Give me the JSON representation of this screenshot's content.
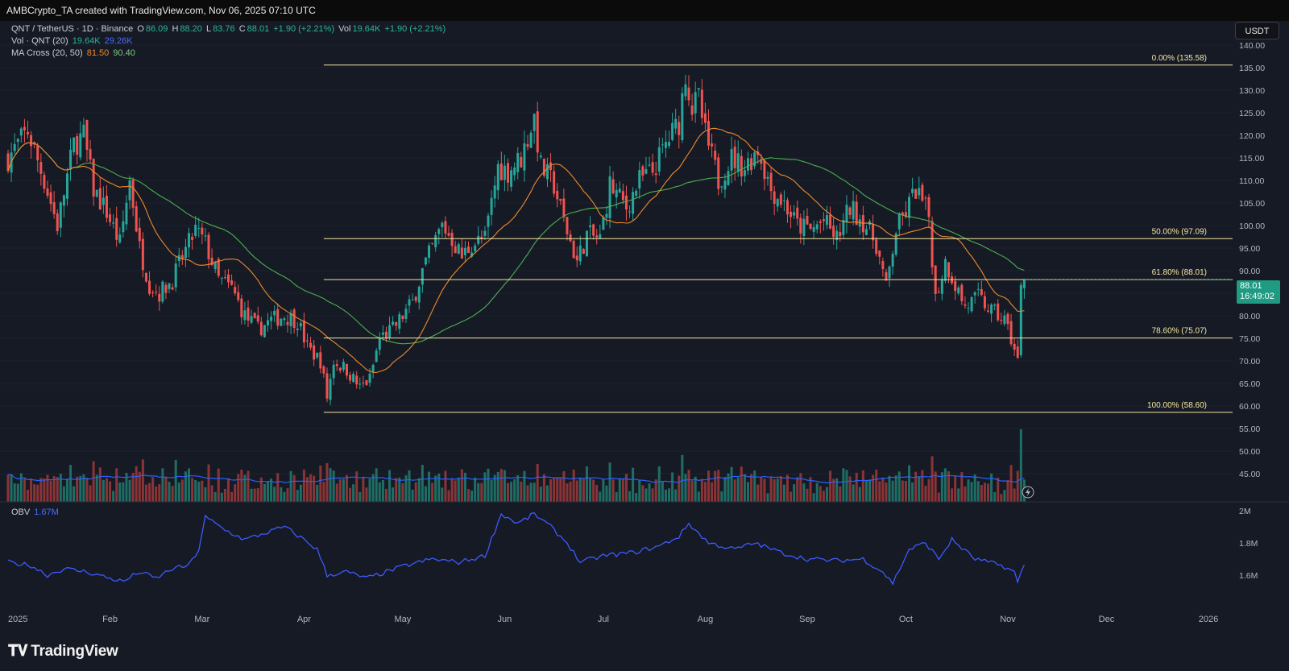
{
  "header": {
    "attribution": "AMBCrypto_TA created with TradingView.com, Nov 06, 2025 07:10 UTC"
  },
  "legend": {
    "symbol": "QNT / TetherUS · 1D · Binance",
    "ohlc": [
      "O",
      "86.09",
      "H",
      "88.20",
      "L",
      "83.76",
      "C",
      "88.01",
      "+1.90 (+2.21%)"
    ],
    "vol_label": "Vol",
    "vol_value": "19.64K",
    "vol_change": "+1.90 (+2.21%)",
    "vol_qnt_label": "Vol · QNT (20)",
    "vol_qnt_v1": "19.64K",
    "vol_qnt_v2": "29.26K",
    "ma_label": "MA Cross (20, 50)",
    "ma_v1": "81.50",
    "ma_v2": "90.40"
  },
  "currency_button": "USDT",
  "last_price": {
    "value": "88.01",
    "countdown": "16:49:02"
  },
  "obv": {
    "label": "OBV",
    "value": "1.67M"
  },
  "brand": "TradingView",
  "colors": {
    "background": "#161a25",
    "up": "#26a69a",
    "down": "#ef5350",
    "ma20": "#f0892b",
    "ma50": "#4caf50",
    "fib": "#f5e79e",
    "vol_ma": "#2962ff",
    "obv": "#3d5afe"
  },
  "chart_data": {
    "type": "candlestick",
    "title": "QNT / TetherUS · 1D · Binance",
    "price_axis": {
      "ylim": [
        43,
        142
      ],
      "ticks": [
        "140.00",
        "135.00",
        "130.00",
        "125.00",
        "120.00",
        "115.00",
        "110.00",
        "105.00",
        "100.00",
        "95.00",
        "90.00",
        "85.00",
        "80.00",
        "75.00",
        "70.00",
        "65.00",
        "60.00",
        "55.00",
        "50.00",
        "45.00"
      ]
    },
    "x_axis": {
      "ticks": [
        "2025",
        "Feb",
        "Mar",
        "Apr",
        "May",
        "Jun",
        "Jul",
        "Aug",
        "Sep",
        "Oct",
        "Nov",
        "Dec",
        "2026"
      ]
    },
    "fib_levels": [
      {
        "label": "0.00% (135.58)",
        "value": 135.58
      },
      {
        "label": "50.00% (97.09)",
        "value": 97.09
      },
      {
        "label": "61.80% (88.01)",
        "value": 88.01
      },
      {
        "label": "78.60% (75.07)",
        "value": 75.07
      },
      {
        "label": "100.00% (58.60)",
        "value": 58.6
      }
    ],
    "price_path": [
      [
        "2025-01-01",
        115
      ],
      [
        "2025-01-07",
        121
      ],
      [
        "2025-01-12",
        110
      ],
      [
        "2025-01-16",
        100
      ],
      [
        "2025-01-21",
        118
      ],
      [
        "2025-01-24",
        120
      ],
      [
        "2025-01-27",
        108
      ],
      [
        "2025-01-31",
        103
      ],
      [
        "2025-02-04",
        96
      ],
      [
        "2025-02-07",
        110
      ],
      [
        "2025-02-10",
        95
      ],
      [
        "2025-02-13",
        87
      ],
      [
        "2025-02-16",
        85
      ],
      [
        "2025-02-20",
        88
      ],
      [
        "2025-02-23",
        93
      ],
      [
        "2025-02-27",
        99
      ],
      [
        "2025-03-02",
        96
      ],
      [
        "2025-03-06",
        88
      ],
      [
        "2025-03-10",
        86
      ],
      [
        "2025-03-14",
        80
      ],
      [
        "2025-03-18",
        77
      ],
      [
        "2025-03-22",
        79
      ],
      [
        "2025-03-26",
        80
      ],
      [
        "2025-03-30",
        79
      ],
      [
        "2025-04-02",
        73
      ],
      [
        "2025-04-06",
        70
      ],
      [
        "2025-04-08",
        62
      ],
      [
        "2025-04-10",
        70
      ],
      [
        "2025-04-14",
        68
      ],
      [
        "2025-04-18",
        64
      ],
      [
        "2025-04-21",
        66
      ],
      [
        "2025-04-24",
        75
      ],
      [
        "2025-04-28",
        77
      ],
      [
        "2025-05-01",
        80
      ],
      [
        "2025-05-04",
        83
      ],
      [
        "2025-05-07",
        90
      ],
      [
        "2025-05-10",
        95
      ],
      [
        "2025-05-13",
        100
      ],
      [
        "2025-05-16",
        97
      ],
      [
        "2025-05-19",
        93
      ],
      [
        "2025-05-22",
        96
      ],
      [
        "2025-05-26",
        97
      ],
      [
        "2025-05-30",
        113
      ],
      [
        "2025-06-02",
        112
      ],
      [
        "2025-06-06",
        115
      ],
      [
        "2025-06-10",
        124
      ],
      [
        "2025-06-12",
        113
      ],
      [
        "2025-06-16",
        109
      ],
      [
        "2025-06-19",
        101
      ],
      [
        "2025-06-23",
        92
      ],
      [
        "2025-06-26",
        98
      ],
      [
        "2025-06-30",
        97
      ],
      [
        "2025-07-03",
        109
      ],
      [
        "2025-07-08",
        104
      ],
      [
        "2025-07-12",
        110
      ],
      [
        "2025-07-16",
        112
      ],
      [
        "2025-07-20",
        118
      ],
      [
        "2025-07-24",
        123
      ],
      [
        "2025-07-26",
        134
      ],
      [
        "2025-07-28",
        126
      ],
      [
        "2025-07-30",
        128
      ],
      [
        "2025-08-01",
        120
      ],
      [
        "2025-08-05",
        110
      ],
      [
        "2025-08-09",
        115
      ],
      [
        "2025-08-13",
        113
      ],
      [
        "2025-08-17",
        117
      ],
      [
        "2025-08-21",
        108
      ],
      [
        "2025-08-25",
        105
      ],
      [
        "2025-08-29",
        100
      ],
      [
        "2025-09-02",
        99
      ],
      [
        "2025-09-06",
        101
      ],
      [
        "2025-09-10",
        97
      ],
      [
        "2025-09-14",
        104
      ],
      [
        "2025-09-18",
        101
      ],
      [
        "2025-09-22",
        96
      ],
      [
        "2025-09-25",
        86
      ],
      [
        "2025-09-28",
        99
      ],
      [
        "2025-10-01",
        103
      ],
      [
        "2025-10-04",
        108
      ],
      [
        "2025-10-08",
        102
      ],
      [
        "2025-10-10",
        84
      ],
      [
        "2025-10-13",
        92
      ],
      [
        "2025-10-16",
        87
      ],
      [
        "2025-10-19",
        82
      ],
      [
        "2025-10-23",
        84
      ],
      [
        "2025-10-27",
        81
      ],
      [
        "2025-10-31",
        79
      ],
      [
        "2025-11-02",
        75
      ],
      [
        "2025-11-04",
        70
      ],
      [
        "2025-11-05",
        86
      ],
      [
        "2025-11-06",
        88.01
      ]
    ],
    "volume_scale": [
      0,
      60
    ],
    "obv_axis": {
      "ticks": [
        "2M",
        "1.8M",
        "1.6M"
      ],
      "ylim": [
        1.48,
        2.08
      ]
    },
    "obv_path": [
      [
        "2025-01-01",
        1.68
      ],
      [
        "2025-01-08",
        1.66
      ],
      [
        "2025-01-13",
        1.6
      ],
      [
        "2025-01-18",
        1.64
      ],
      [
        "2025-01-25",
        1.62
      ],
      [
        "2025-02-01",
        1.58
      ],
      [
        "2025-02-05",
        1.56
      ],
      [
        "2025-02-10",
        1.62
      ],
      [
        "2025-02-15",
        1.58
      ],
      [
        "2025-02-20",
        1.64
      ],
      [
        "2025-02-25",
        1.66
      ],
      [
        "2025-02-28",
        1.76
      ],
      [
        "2025-03-02",
        1.96
      ],
      [
        "2025-03-08",
        1.88
      ],
      [
        "2025-03-14",
        1.82
      ],
      [
        "2025-03-20",
        1.86
      ],
      [
        "2025-03-26",
        1.9
      ],
      [
        "2025-04-01",
        1.82
      ],
      [
        "2025-04-05",
        1.76
      ],
      [
        "2025-04-08",
        1.6
      ],
      [
        "2025-04-14",
        1.62
      ],
      [
        "2025-04-20",
        1.58
      ],
      [
        "2025-04-26",
        1.62
      ],
      [
        "2025-05-02",
        1.66
      ],
      [
        "2025-05-10",
        1.7
      ],
      [
        "2025-05-18",
        1.68
      ],
      [
        "2025-05-26",
        1.72
      ],
      [
        "2025-05-31",
        1.98
      ],
      [
        "2025-06-05",
        1.92
      ],
      [
        "2025-06-10",
        1.98
      ],
      [
        "2025-06-15",
        1.9
      ],
      [
        "2025-06-20",
        1.8
      ],
      [
        "2025-06-24",
        1.68
      ],
      [
        "2025-07-01",
        1.72
      ],
      [
        "2025-07-10",
        1.74
      ],
      [
        "2025-07-18",
        1.78
      ],
      [
        "2025-07-24",
        1.84
      ],
      [
        "2025-07-27",
        1.92
      ],
      [
        "2025-08-02",
        1.8
      ],
      [
        "2025-08-10",
        1.76
      ],
      [
        "2025-08-16",
        1.8
      ],
      [
        "2025-08-24",
        1.74
      ],
      [
        "2025-09-01",
        1.7
      ],
      [
        "2025-09-10",
        1.69
      ],
      [
        "2025-09-18",
        1.7
      ],
      [
        "2025-09-24",
        1.62
      ],
      [
        "2025-09-27",
        1.55
      ],
      [
        "2025-10-02",
        1.76
      ],
      [
        "2025-10-07",
        1.8
      ],
      [
        "2025-10-11",
        1.7
      ],
      [
        "2025-10-15",
        1.82
      ],
      [
        "2025-10-22",
        1.7
      ],
      [
        "2025-10-30",
        1.66
      ],
      [
        "2025-11-03",
        1.62
      ],
      [
        "2025-11-04",
        1.55
      ],
      [
        "2025-11-06",
        1.67
      ]
    ]
  }
}
